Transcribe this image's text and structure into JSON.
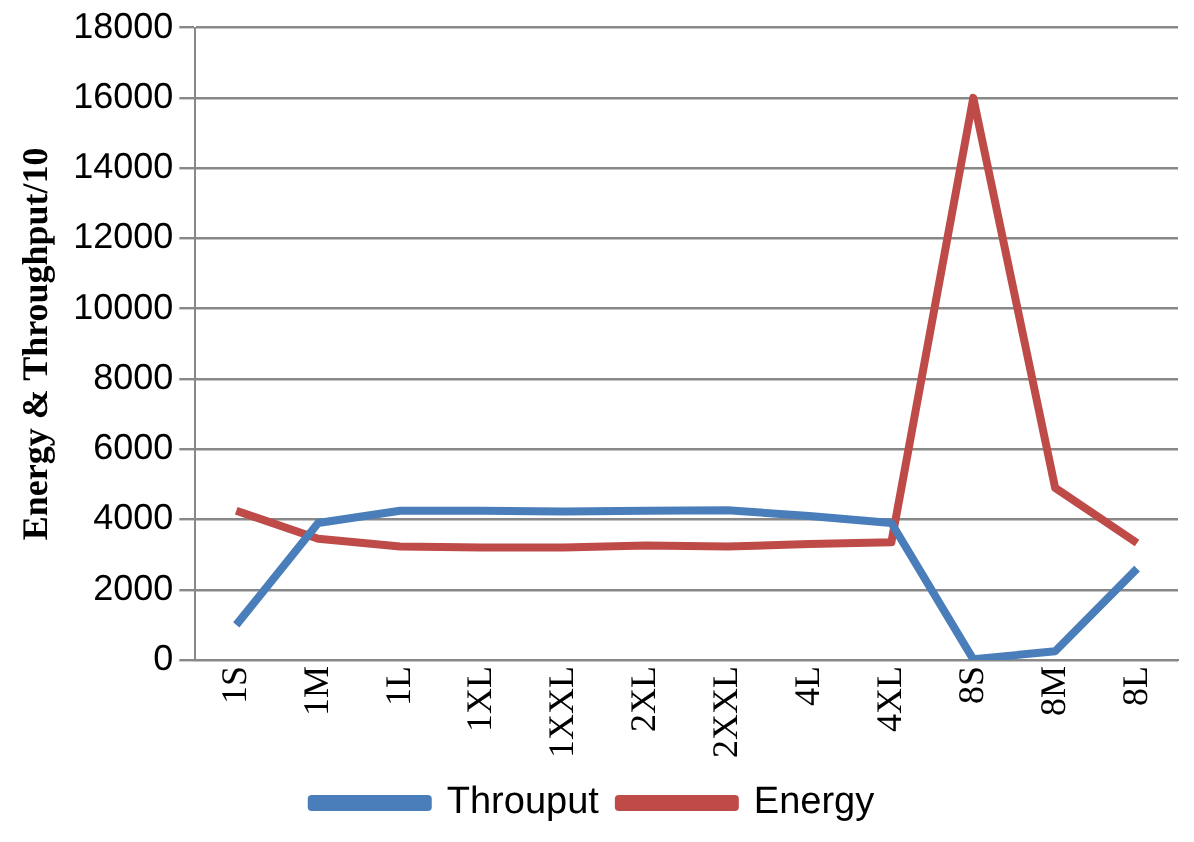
{
  "chart_data": {
    "type": "line",
    "ylabel": "Energy & Throughput/10",
    "categories": [
      "1S",
      "1M",
      "1L",
      "1XL",
      "1XXL",
      "2XL",
      "2XXL",
      "4L",
      "4XL",
      "8S",
      "8M",
      "8L"
    ],
    "series": [
      {
        "name": "Throuput",
        "color": "#4a7ebb",
        "values": [
          1000,
          3900,
          4250,
          4250,
          4230,
          4250,
          4260,
          4100,
          3900,
          20,
          250,
          2600
        ]
      },
      {
        "name": "Energy",
        "color": "#be4b48",
        "values": [
          4250,
          3450,
          3230,
          3200,
          3200,
          3260,
          3230,
          3300,
          3350,
          16000,
          4900,
          3330
        ]
      }
    ],
    "ylim": [
      0,
      18000
    ],
    "yticks": [
      0,
      2000,
      4000,
      6000,
      8000,
      10000,
      12000,
      14000,
      16000,
      18000
    ],
    "grid": "y",
    "legend": "bottom",
    "marker": "none",
    "line_style": "solid"
  }
}
